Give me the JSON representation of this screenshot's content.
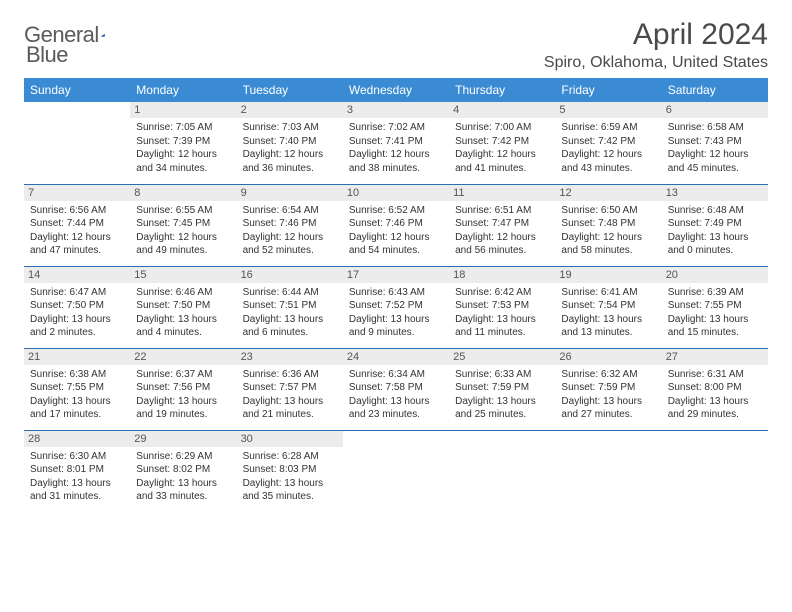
{
  "logo": {
    "word1": "General",
    "word2": "Blue"
  },
  "title": "April 2024",
  "location": "Spiro, Oklahoma, United States",
  "colors": {
    "header_bg": "#3b8bd4",
    "header_text": "#ffffff",
    "border": "#2a6db5",
    "daynum_bg": "#ececec",
    "text": "#333333",
    "title_text": "#4a4a4a"
  },
  "days_of_week": [
    "Sunday",
    "Monday",
    "Tuesday",
    "Wednesday",
    "Thursday",
    "Friday",
    "Saturday"
  ],
  "weeks": [
    [
      null,
      {
        "n": "1",
        "sr": "Sunrise: 7:05 AM",
        "ss": "Sunset: 7:39 PM",
        "d1": "Daylight: 12 hours",
        "d2": "and 34 minutes."
      },
      {
        "n": "2",
        "sr": "Sunrise: 7:03 AM",
        "ss": "Sunset: 7:40 PM",
        "d1": "Daylight: 12 hours",
        "d2": "and 36 minutes."
      },
      {
        "n": "3",
        "sr": "Sunrise: 7:02 AM",
        "ss": "Sunset: 7:41 PM",
        "d1": "Daylight: 12 hours",
        "d2": "and 38 minutes."
      },
      {
        "n": "4",
        "sr": "Sunrise: 7:00 AM",
        "ss": "Sunset: 7:42 PM",
        "d1": "Daylight: 12 hours",
        "d2": "and 41 minutes."
      },
      {
        "n": "5",
        "sr": "Sunrise: 6:59 AM",
        "ss": "Sunset: 7:42 PM",
        "d1": "Daylight: 12 hours",
        "d2": "and 43 minutes."
      },
      {
        "n": "6",
        "sr": "Sunrise: 6:58 AM",
        "ss": "Sunset: 7:43 PM",
        "d1": "Daylight: 12 hours",
        "d2": "and 45 minutes."
      }
    ],
    [
      {
        "n": "7",
        "sr": "Sunrise: 6:56 AM",
        "ss": "Sunset: 7:44 PM",
        "d1": "Daylight: 12 hours",
        "d2": "and 47 minutes."
      },
      {
        "n": "8",
        "sr": "Sunrise: 6:55 AM",
        "ss": "Sunset: 7:45 PM",
        "d1": "Daylight: 12 hours",
        "d2": "and 49 minutes."
      },
      {
        "n": "9",
        "sr": "Sunrise: 6:54 AM",
        "ss": "Sunset: 7:46 PM",
        "d1": "Daylight: 12 hours",
        "d2": "and 52 minutes."
      },
      {
        "n": "10",
        "sr": "Sunrise: 6:52 AM",
        "ss": "Sunset: 7:46 PM",
        "d1": "Daylight: 12 hours",
        "d2": "and 54 minutes."
      },
      {
        "n": "11",
        "sr": "Sunrise: 6:51 AM",
        "ss": "Sunset: 7:47 PM",
        "d1": "Daylight: 12 hours",
        "d2": "and 56 minutes."
      },
      {
        "n": "12",
        "sr": "Sunrise: 6:50 AM",
        "ss": "Sunset: 7:48 PM",
        "d1": "Daylight: 12 hours",
        "d2": "and 58 minutes."
      },
      {
        "n": "13",
        "sr": "Sunrise: 6:48 AM",
        "ss": "Sunset: 7:49 PM",
        "d1": "Daylight: 13 hours",
        "d2": "and 0 minutes."
      }
    ],
    [
      {
        "n": "14",
        "sr": "Sunrise: 6:47 AM",
        "ss": "Sunset: 7:50 PM",
        "d1": "Daylight: 13 hours",
        "d2": "and 2 minutes."
      },
      {
        "n": "15",
        "sr": "Sunrise: 6:46 AM",
        "ss": "Sunset: 7:50 PM",
        "d1": "Daylight: 13 hours",
        "d2": "and 4 minutes."
      },
      {
        "n": "16",
        "sr": "Sunrise: 6:44 AM",
        "ss": "Sunset: 7:51 PM",
        "d1": "Daylight: 13 hours",
        "d2": "and 6 minutes."
      },
      {
        "n": "17",
        "sr": "Sunrise: 6:43 AM",
        "ss": "Sunset: 7:52 PM",
        "d1": "Daylight: 13 hours",
        "d2": "and 9 minutes."
      },
      {
        "n": "18",
        "sr": "Sunrise: 6:42 AM",
        "ss": "Sunset: 7:53 PM",
        "d1": "Daylight: 13 hours",
        "d2": "and 11 minutes."
      },
      {
        "n": "19",
        "sr": "Sunrise: 6:41 AM",
        "ss": "Sunset: 7:54 PM",
        "d1": "Daylight: 13 hours",
        "d2": "and 13 minutes."
      },
      {
        "n": "20",
        "sr": "Sunrise: 6:39 AM",
        "ss": "Sunset: 7:55 PM",
        "d1": "Daylight: 13 hours",
        "d2": "and 15 minutes."
      }
    ],
    [
      {
        "n": "21",
        "sr": "Sunrise: 6:38 AM",
        "ss": "Sunset: 7:55 PM",
        "d1": "Daylight: 13 hours",
        "d2": "and 17 minutes."
      },
      {
        "n": "22",
        "sr": "Sunrise: 6:37 AM",
        "ss": "Sunset: 7:56 PM",
        "d1": "Daylight: 13 hours",
        "d2": "and 19 minutes."
      },
      {
        "n": "23",
        "sr": "Sunrise: 6:36 AM",
        "ss": "Sunset: 7:57 PM",
        "d1": "Daylight: 13 hours",
        "d2": "and 21 minutes."
      },
      {
        "n": "24",
        "sr": "Sunrise: 6:34 AM",
        "ss": "Sunset: 7:58 PM",
        "d1": "Daylight: 13 hours",
        "d2": "and 23 minutes."
      },
      {
        "n": "25",
        "sr": "Sunrise: 6:33 AM",
        "ss": "Sunset: 7:59 PM",
        "d1": "Daylight: 13 hours",
        "d2": "and 25 minutes."
      },
      {
        "n": "26",
        "sr": "Sunrise: 6:32 AM",
        "ss": "Sunset: 7:59 PM",
        "d1": "Daylight: 13 hours",
        "d2": "and 27 minutes."
      },
      {
        "n": "27",
        "sr": "Sunrise: 6:31 AM",
        "ss": "Sunset: 8:00 PM",
        "d1": "Daylight: 13 hours",
        "d2": "and 29 minutes."
      }
    ],
    [
      {
        "n": "28",
        "sr": "Sunrise: 6:30 AM",
        "ss": "Sunset: 8:01 PM",
        "d1": "Daylight: 13 hours",
        "d2": "and 31 minutes."
      },
      {
        "n": "29",
        "sr": "Sunrise: 6:29 AM",
        "ss": "Sunset: 8:02 PM",
        "d1": "Daylight: 13 hours",
        "d2": "and 33 minutes."
      },
      {
        "n": "30",
        "sr": "Sunrise: 6:28 AM",
        "ss": "Sunset: 8:03 PM",
        "d1": "Daylight: 13 hours",
        "d2": "and 35 minutes."
      },
      null,
      null,
      null,
      null
    ]
  ]
}
